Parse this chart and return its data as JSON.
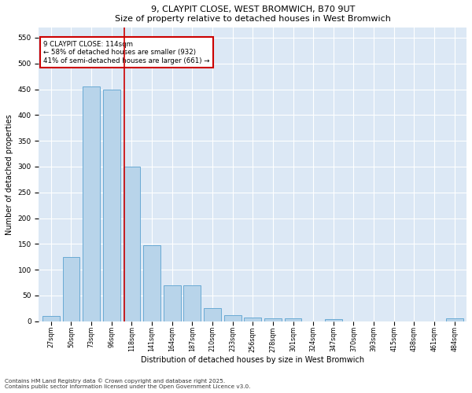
{
  "title1": "9, CLAYPIT CLOSE, WEST BROMWICH, B70 9UT",
  "title2": "Size of property relative to detached houses in West Bromwich",
  "xlabel": "Distribution of detached houses by size in West Bromwich",
  "ylabel": "Number of detached properties",
  "categories": [
    "27sqm",
    "50sqm",
    "73sqm",
    "96sqm",
    "118sqm",
    "141sqm",
    "164sqm",
    "187sqm",
    "210sqm",
    "233sqm",
    "256sqm",
    "278sqm",
    "301sqm",
    "324sqm",
    "347sqm",
    "370sqm",
    "393sqm",
    "415sqm",
    "438sqm",
    "461sqm",
    "484sqm"
  ],
  "values": [
    10,
    125,
    455,
    450,
    300,
    148,
    70,
    70,
    25,
    12,
    8,
    6,
    6,
    0,
    4,
    0,
    0,
    0,
    0,
    0,
    6
  ],
  "bar_color": "#b8d4ea",
  "bar_edge_color": "#6aaad4",
  "red_line_x": 3.62,
  "annotation_text": "9 CLAYPIT CLOSE: 114sqm\n← 58% of detached houses are smaller (932)\n41% of semi-detached houses are larger (661) →",
  "annotation_box_color": "#ffffff",
  "annotation_box_edge": "#cc0000",
  "annotation_text_color": "#000000",
  "footer1": "Contains HM Land Registry data © Crown copyright and database right 2025.",
  "footer2": "Contains public sector information licensed under the Open Government Licence v3.0.",
  "plot_bg_color": "#dce8f5",
  "fig_bg_color": "#ffffff",
  "ylim": [
    0,
    570
  ],
  "yticks": [
    0,
    50,
    100,
    150,
    200,
    250,
    300,
    350,
    400,
    450,
    500,
    550
  ]
}
